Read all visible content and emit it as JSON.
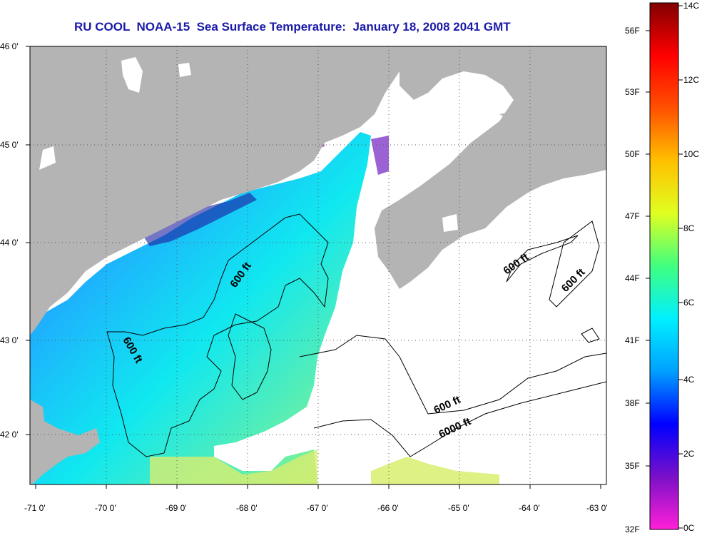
{
  "title": "RU COOL  NOAA-15  Sea Surface Temperature:  January 18, 2008 2041 GMT",
  "map": {
    "x_ticks": [
      "-71 0'",
      "-70 0'",
      "-69 0'",
      "-68 0'",
      "-67 0'",
      "-66 0'",
      "-65 0'",
      "-64 0'",
      "-63 0'"
    ],
    "y_ticks": [
      "46 0'",
      "45 0'",
      "44 0'",
      "43 0'",
      "42 0'"
    ],
    "contour_labels": [
      "600 ft",
      "600 ft",
      "600 ft",
      "600 ft",
      "600 ft",
      "6000 ft"
    ],
    "colors": {
      "land": "#b4b4b4",
      "cloud": "#ffffff",
      "frame": "#000000"
    }
  },
  "colorbar": {
    "celsius_labels": [
      "14C",
      "12C",
      "10C",
      "8C",
      "6C",
      "4C",
      "2C",
      "0C"
    ],
    "fahrenheit_labels": [
      "56F",
      "53F",
      "50F",
      "47F",
      "44F",
      "41F",
      "38F",
      "35F",
      "32F"
    ],
    "stops": [
      "#ff20d8",
      "#7a10c8",
      "#0000ff",
      "#00a0ff",
      "#00f0ff",
      "#40ff80",
      "#e0ff20",
      "#ffc000",
      "#ff5000",
      "#ff0000",
      "#800000"
    ]
  }
}
